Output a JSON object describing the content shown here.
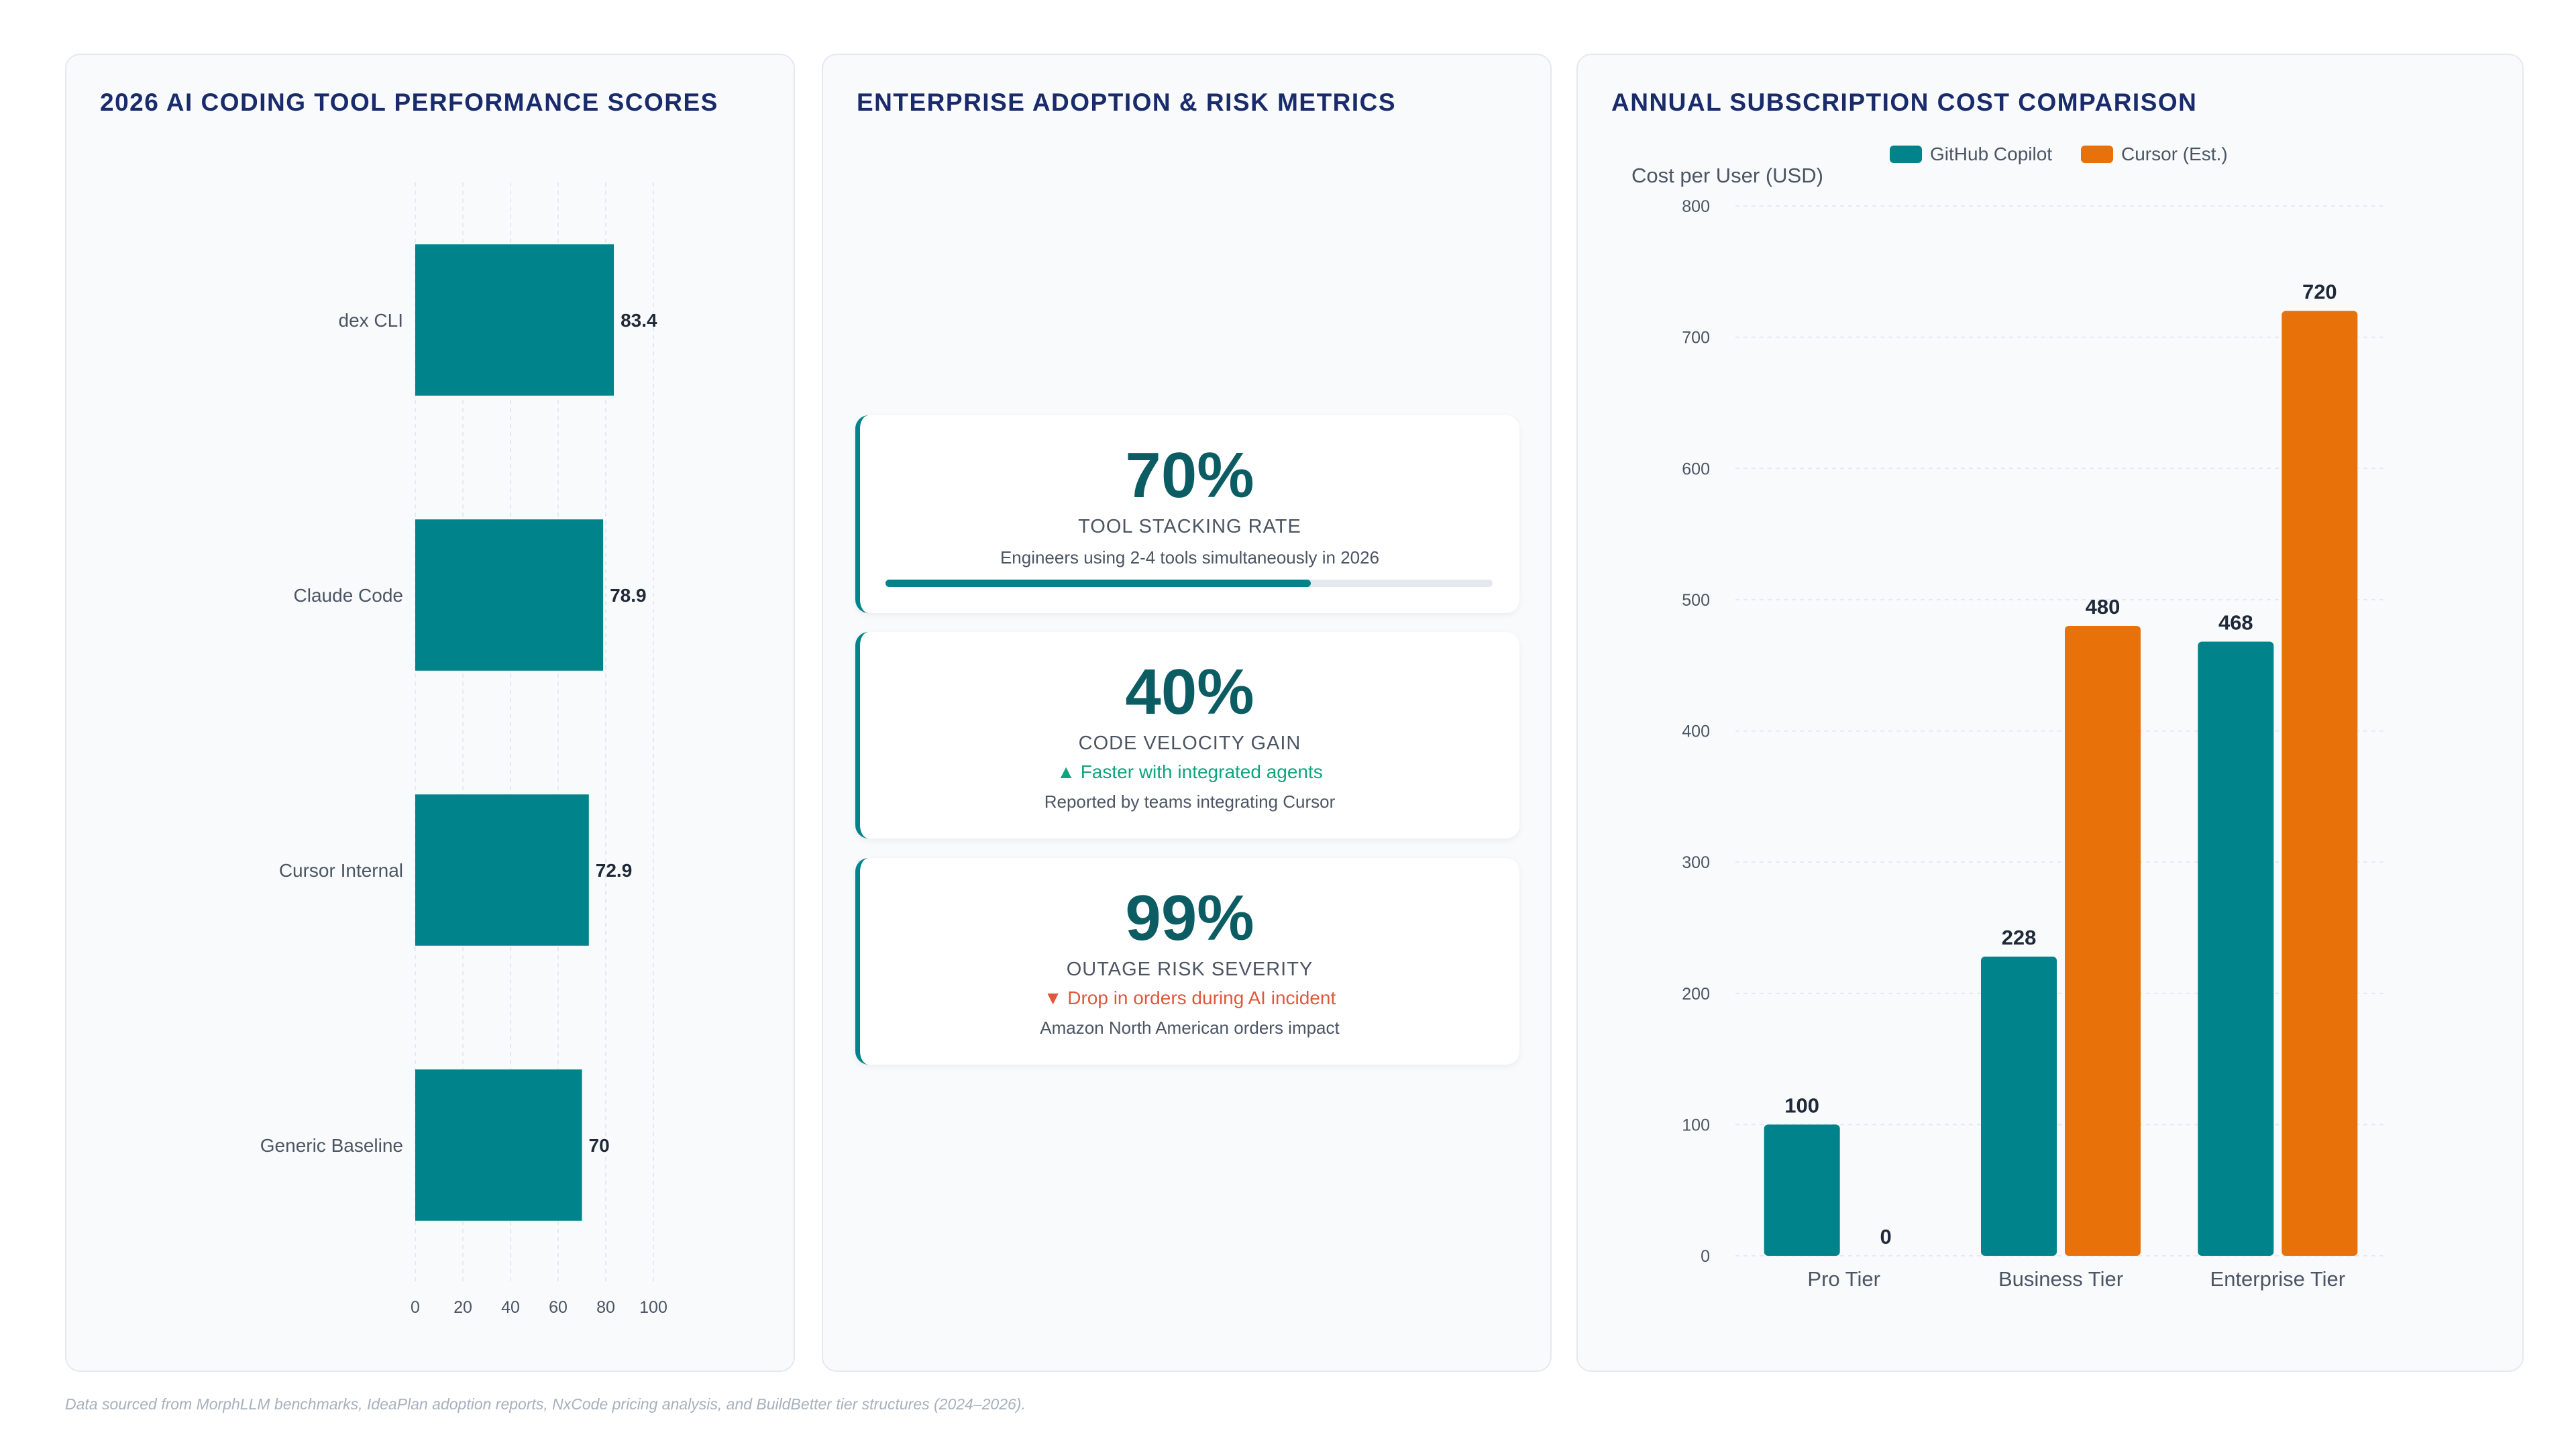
{
  "colors": {
    "teal": "#00838a",
    "orange": "#e8710a",
    "title": "#1a2b6b",
    "kpi_value": "#0b5c63",
    "trend_up": "#0fa37f",
    "trend_down": "#e0573b"
  },
  "left_panel": {
    "title": "2026 AI CODING TOOL PERFORMANCE SCORES"
  },
  "mid_panel": {
    "title": "ENTERPRISE ADOPTION & RISK METRICS",
    "kpis": [
      {
        "value": "70%",
        "label": "TOOL STACKING RATE",
        "description": "Engineers using 2-4 tools simultaneously in 2026",
        "progress_percent": 70
      },
      {
        "value": "40%",
        "label": "CODE VELOCITY GAIN",
        "trend": "▲ Faster with integrated agents",
        "description": "Reported by teams integrating Cursor"
      },
      {
        "value": "99%",
        "label": "OUTAGE RISK SEVERITY",
        "trend": "▼ Drop in orders during AI incident",
        "description": "Amazon North American orders impact"
      }
    ]
  },
  "right_panel": {
    "title": "ANNUAL SUBSCRIPTION COST COMPARISON"
  },
  "chart_data": [
    {
      "type": "bar",
      "orientation": "horizontal",
      "title": "2026 AI CODING TOOL PERFORMANCE SCORES",
      "categories": [
        "dex CLI",
        "Claude Code",
        "Cursor Internal",
        "Generic Baseline"
      ],
      "values": [
        83.4,
        78.9,
        72.9,
        70
      ],
      "value_labels": [
        "83.4",
        "78.9",
        "72.9",
        "70"
      ],
      "xlim": [
        0,
        100
      ],
      "xticks": [
        0,
        20,
        40,
        60,
        80,
        100
      ],
      "grid": true,
      "color": "#00838a"
    },
    {
      "type": "bar",
      "title": "ANNUAL SUBSCRIPTION COST COMPARISON",
      "ylabel": "Cost per User (USD)",
      "categories": [
        "Pro Tier",
        "Business Tier",
        "Enterprise Tier"
      ],
      "series": [
        {
          "name": "GitHub Copilot",
          "values": [
            100,
            228,
            468
          ],
          "color": "#00838a"
        },
        {
          "name": "Cursor (Est.)",
          "values": [
            0,
            480,
            720
          ],
          "color": "#e8710a"
        }
      ],
      "ylim": [
        0,
        800
      ],
      "yticks": [
        0,
        100,
        200,
        300,
        400,
        500,
        600,
        700,
        800
      ],
      "grid": true,
      "legend": "top"
    }
  ],
  "footnote": "Data sourced from MorphLLM benchmarks, IdeaPlan adoption reports, NxCode pricing analysis, and BuildBetter tier structures (2024–2026)."
}
